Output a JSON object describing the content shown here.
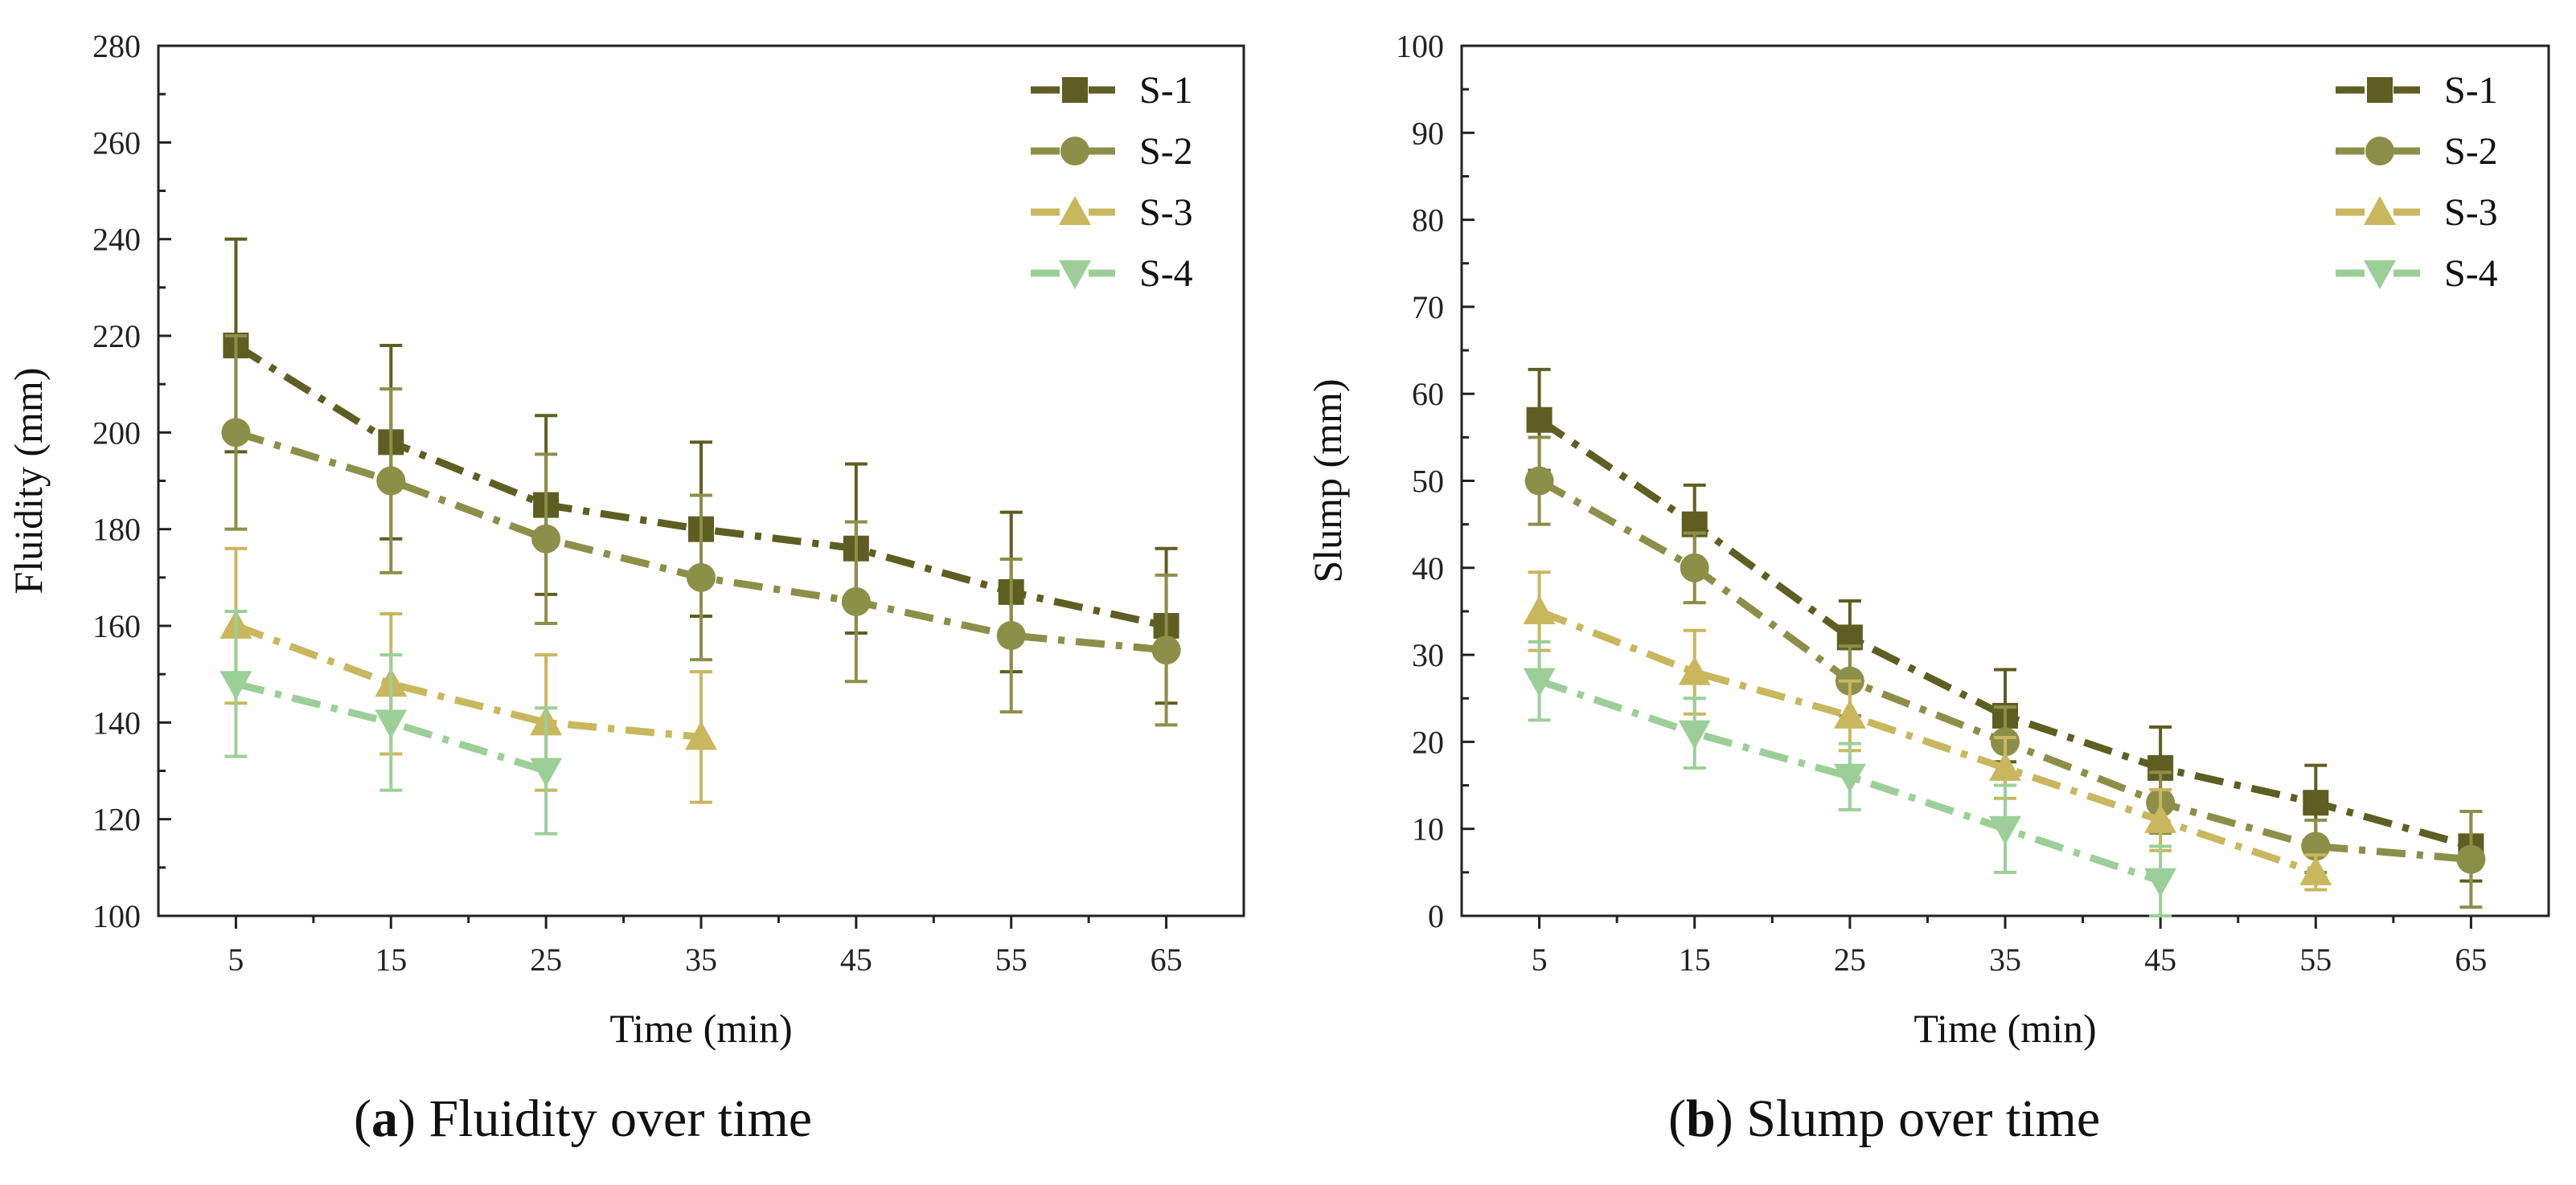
{
  "chart_data": [
    {
      "id": "a",
      "type": "line",
      "caption_letter": "a",
      "caption_text": " Fluidity over time",
      "xlabel": "Time (min)",
      "ylabel": "Fluidity (mm)",
      "xlim": [
        0,
        70
      ],
      "ylim": [
        100,
        280
      ],
      "x_ticks": [
        5,
        15,
        25,
        35,
        45,
        55,
        65
      ],
      "y_ticks": [
        100,
        120,
        140,
        160,
        180,
        200,
        220,
        240,
        260,
        280
      ],
      "legend_position": "top-right",
      "series": [
        {
          "name": "S-1",
          "marker": "square",
          "color": "#5e5e22",
          "x": [
            5,
            15,
            25,
            35,
            45,
            55,
            65
          ],
          "y": [
            218,
            198,
            185,
            180,
            176,
            167,
            160
          ],
          "err": [
            22,
            20,
            18.5,
            18,
            17.5,
            16.5,
            16
          ]
        },
        {
          "name": "S-2",
          "marker": "circle",
          "color": "#8c8f48",
          "x": [
            5,
            15,
            25,
            35,
            45,
            55,
            65
          ],
          "y": [
            200,
            190,
            178,
            170,
            165,
            158,
            155
          ],
          "err": [
            20,
            19,
            17.5,
            17,
            16.5,
            15.8,
            15.5
          ]
        },
        {
          "name": "S-3",
          "marker": "triangle-up",
          "color": "#c9b75e",
          "x": [
            5,
            15,
            25,
            35
          ],
          "y": [
            160,
            148,
            140,
            137
          ],
          "err": [
            16,
            14.5,
            14,
            13.5
          ]
        },
        {
          "name": "S-4",
          "marker": "triangle-down",
          "color": "#9ccf98",
          "x": [
            5,
            15,
            25
          ],
          "y": [
            148,
            140,
            130
          ],
          "err": [
            15,
            14,
            13
          ]
        }
      ]
    },
    {
      "id": "b",
      "type": "line",
      "caption_letter": "b",
      "caption_text": " Slump over time",
      "xlabel": "Time (min)",
      "ylabel": "Slump (mm)",
      "xlim": [
        0,
        70
      ],
      "ylim": [
        0,
        100
      ],
      "x_ticks": [
        5,
        15,
        25,
        35,
        45,
        55,
        65
      ],
      "y_ticks": [
        0,
        10,
        20,
        30,
        40,
        50,
        60,
        70,
        80,
        90,
        100
      ],
      "legend_position": "top-right",
      "series": [
        {
          "name": "S-1",
          "marker": "square",
          "color": "#5e5e22",
          "x": [
            5,
            15,
            25,
            35,
            45,
            55,
            65
          ],
          "y": [
            57,
            45,
            32,
            23,
            17,
            13,
            8
          ],
          "err": [
            5.8,
            4.5,
            4.2,
            5.3,
            4.7,
            4.3,
            4
          ]
        },
        {
          "name": "S-2",
          "marker": "circle",
          "color": "#8c8f48",
          "x": [
            5,
            15,
            25,
            35,
            45,
            55,
            65
          ],
          "y": [
            50,
            40,
            27,
            20,
            13,
            8,
            6.5
          ],
          "err": [
            5,
            4,
            4,
            4,
            3.5,
            3,
            5.5
          ]
        },
        {
          "name": "S-3",
          "marker": "triangle-up",
          "color": "#c9b75e",
          "x": [
            5,
            15,
            25,
            35,
            45,
            55
          ],
          "y": [
            35,
            28,
            23,
            17,
            11,
            5
          ],
          "err": [
            4.5,
            4.8,
            4,
            3.5,
            3.5,
            2
          ]
        },
        {
          "name": "S-4",
          "marker": "triangle-down",
          "color": "#9ccf98",
          "x": [
            5,
            15,
            25,
            35,
            45
          ],
          "y": [
            27,
            21,
            16,
            10,
            4
          ],
          "err": [
            4.5,
            4,
            3.8,
            5,
            4
          ]
        }
      ]
    }
  ]
}
